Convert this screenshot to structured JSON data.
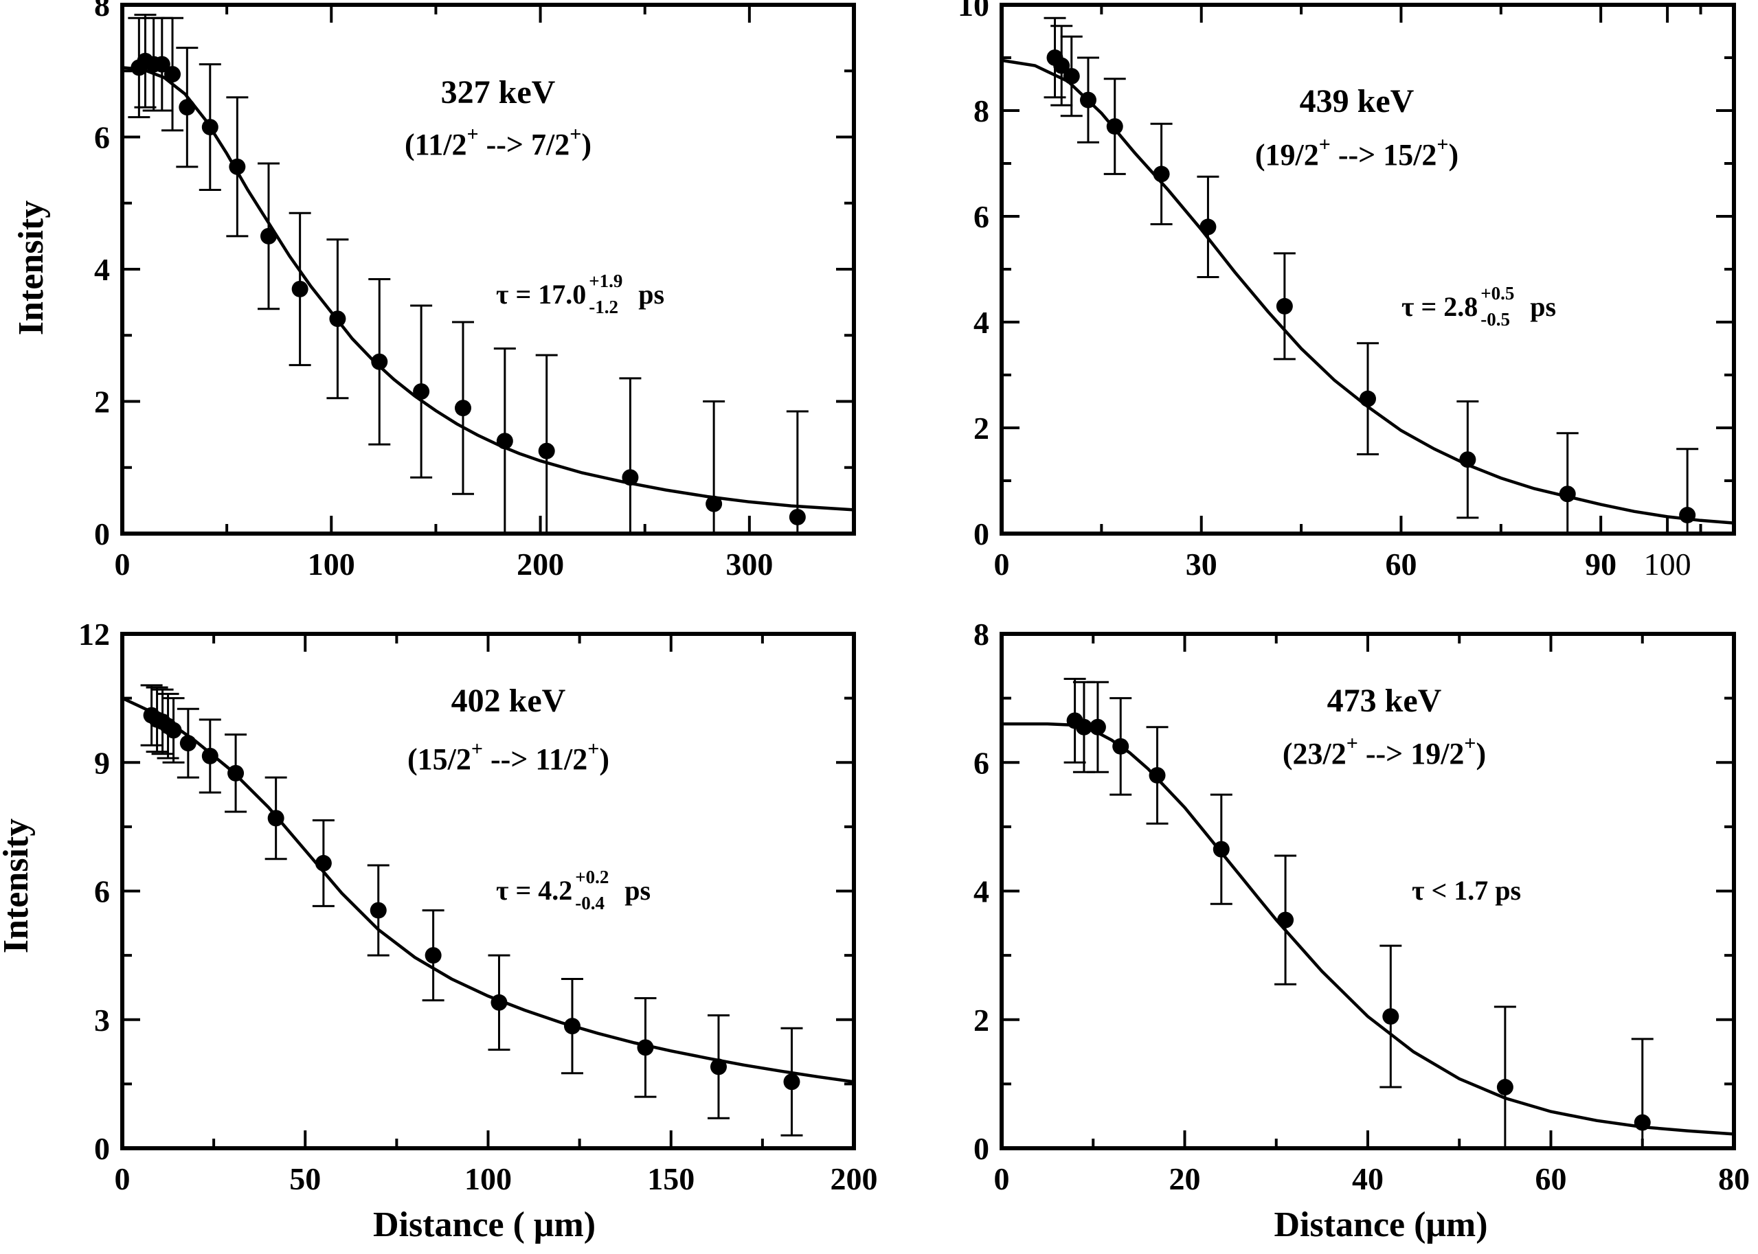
{
  "chart_data": [
    {
      "type": "scatter",
      "xlabel": "",
      "ylabel": "Intensity",
      "xlim": [
        0,
        350
      ],
      "ylim": [
        0,
        8
      ],
      "xticks": [
        0,
        100,
        200,
        300
      ],
      "yticks": [
        0,
        2,
        4,
        6,
        8
      ],
      "x_tick_labels": [
        "0",
        "100",
        "200",
        "300"
      ],
      "y_tick_labels": [
        "0",
        "2",
        "4",
        "6",
        "8"
      ],
      "grid": false,
      "legend": "none",
      "title_lines": {
        "energy": "327 keV",
        "trans_open": "(11/2",
        "trans_sup1": "+",
        "trans_mid": " --> 7/2",
        "trans_sup2": "+",
        "trans_close": ")"
      },
      "tau": {
        "prefix": "τ = 17.0",
        "upper": "+1.9",
        "lower": "-1.2",
        "suffix": "ps"
      },
      "points": {
        "x": [
          8,
          11,
          15,
          19,
          24,
          31,
          42,
          55,
          70,
          85,
          103,
          123,
          143,
          163,
          183,
          203,
          243,
          283,
          323
        ],
        "y": [
          7.05,
          7.15,
          7.1,
          7.1,
          6.95,
          6.45,
          6.15,
          5.55,
          4.5,
          3.7,
          3.25,
          2.6,
          2.15,
          1.9,
          1.4,
          1.25,
          0.85,
          0.45,
          0.25
        ],
        "err": [
          0.75,
          0.7,
          0.7,
          0.7,
          0.85,
          0.9,
          0.95,
          1.05,
          1.1,
          1.15,
          1.2,
          1.25,
          1.3,
          1.3,
          1.4,
          1.45,
          1.5,
          1.55,
          1.6
        ]
      },
      "fit": {
        "x": [
          0,
          10,
          20,
          30,
          40,
          50,
          60,
          70,
          80,
          90,
          100,
          110,
          120,
          130,
          140,
          150,
          160,
          170,
          180,
          190,
          200,
          220,
          240,
          260,
          280,
          300,
          320,
          350
        ],
        "y": [
          7.05,
          7.02,
          6.9,
          6.65,
          6.25,
          5.75,
          5.2,
          4.7,
          4.2,
          3.75,
          3.35,
          2.95,
          2.62,
          2.33,
          2.08,
          1.86,
          1.66,
          1.49,
          1.34,
          1.21,
          1.1,
          0.92,
          0.78,
          0.66,
          0.56,
          0.48,
          0.42,
          0.36
        ]
      }
    },
    {
      "type": "scatter",
      "xlabel": "",
      "ylabel": "",
      "xlim": [
        0,
        110
      ],
      "ylim": [
        0,
        10
      ],
      "xticks": [
        0,
        30,
        60,
        90,
        100
      ],
      "yticks": [
        0,
        2,
        4,
        6,
        8,
        10
      ],
      "x_tick_labels": [
        "0",
        "30",
        "60",
        "90",
        "100"
      ],
      "y_tick_labels": [
        "0",
        "2",
        "4",
        "6",
        "8",
        "10"
      ],
      "grid": false,
      "legend": "none",
      "title_lines": {
        "energy": "439 keV",
        "trans_open": "(19/2",
        "trans_sup1": "+",
        "trans_mid": " --> 15/2",
        "trans_sup2": "+",
        "trans_close": ")"
      },
      "tau": {
        "prefix": "τ = 2.8",
        "upper": "+0.5",
        "lower": "-0.5",
        "suffix": "ps"
      },
      "points": {
        "x": [
          8,
          9,
          10.5,
          13,
          17,
          24,
          31,
          42.5,
          55,
          70,
          85,
          103
        ],
        "y": [
          9.0,
          8.85,
          8.65,
          8.2,
          7.7,
          6.8,
          5.8,
          4.3,
          2.55,
          1.4,
          0.75,
          0.35
        ],
        "err": [
          0.75,
          0.75,
          0.75,
          0.8,
          0.9,
          0.95,
          0.95,
          1.0,
          1.05,
          1.1,
          1.15,
          1.25
        ]
      },
      "fit": {
        "x": [
          0,
          5,
          10,
          15,
          20,
          25,
          30,
          35,
          40,
          45,
          50,
          55,
          60,
          65,
          70,
          75,
          80,
          85,
          90,
          95,
          100,
          105,
          110
        ],
        "y": [
          8.95,
          8.85,
          8.55,
          7.95,
          7.2,
          6.5,
          5.75,
          4.95,
          4.2,
          3.5,
          2.9,
          2.4,
          1.95,
          1.6,
          1.3,
          1.05,
          0.85,
          0.7,
          0.55,
          0.42,
          0.32,
          0.25,
          0.2
        ]
      }
    },
    {
      "type": "scatter",
      "xlabel": "Distance ( μm)",
      "ylabel": "Intensity",
      "xlim": [
        0,
        200
      ],
      "ylim": [
        0,
        12
      ],
      "xticks": [
        0,
        50,
        100,
        150,
        200
      ],
      "yticks": [
        0,
        3,
        6,
        9,
        12
      ],
      "x_tick_labels": [
        "0",
        "50",
        "100",
        "150",
        "200"
      ],
      "y_tick_labels": [
        "0",
        "3",
        "6",
        "9",
        "12"
      ],
      "grid": false,
      "legend": "none",
      "title_lines": {
        "energy": "402 keV",
        "trans_open": "(15/2",
        "trans_sup1": "+",
        "trans_mid": " --> 11/2",
        "trans_sup2": "+",
        "trans_close": ")"
      },
      "tau": {
        "prefix": "τ = 4.2",
        "upper": "+0.2",
        "lower": "-0.4",
        "suffix": "ps"
      },
      "points": {
        "x": [
          8,
          9.5,
          11,
          12.5,
          14,
          18,
          24,
          31,
          42,
          55,
          70,
          85,
          103,
          123,
          143,
          163,
          183
        ],
        "y": [
          10.1,
          10.0,
          9.95,
          9.85,
          9.75,
          9.45,
          9.15,
          8.75,
          7.7,
          6.65,
          5.55,
          4.5,
          3.4,
          2.85,
          2.35,
          1.9,
          1.55
        ],
        "err": [
          0.7,
          0.75,
          0.75,
          0.75,
          0.75,
          0.8,
          0.85,
          0.9,
          0.95,
          1.0,
          1.05,
          1.05,
          1.1,
          1.1,
          1.15,
          1.2,
          1.25
        ]
      },
      "fit": {
        "x": [
          0,
          10,
          20,
          30,
          40,
          50,
          60,
          70,
          80,
          90,
          100,
          110,
          120,
          130,
          140,
          150,
          160,
          170,
          180,
          190,
          200
        ],
        "y": [
          10.5,
          10.1,
          9.5,
          8.8,
          7.95,
          6.95,
          5.95,
          5.1,
          4.45,
          3.95,
          3.55,
          3.22,
          2.93,
          2.68,
          2.46,
          2.27,
          2.1,
          1.94,
          1.8,
          1.67,
          1.55
        ]
      }
    },
    {
      "type": "scatter",
      "xlabel": "Distance (μm)",
      "ylabel": "",
      "xlim": [
        0,
        80
      ],
      "ylim": [
        0,
        8
      ],
      "xticks": [
        0,
        20,
        40,
        60,
        80
      ],
      "yticks": [
        0,
        2,
        4,
        6,
        8
      ],
      "x_tick_labels": [
        "0",
        "20",
        "40",
        "60",
        "80"
      ],
      "y_tick_labels": [
        "0",
        "2",
        "4",
        "6",
        "8"
      ],
      "grid": false,
      "legend": "none",
      "title_lines": {
        "energy": "473 keV",
        "trans_open": "(23/2",
        "trans_sup1": "+",
        "trans_mid": " --> 19/2",
        "trans_sup2": "+",
        "trans_close": ")"
      },
      "tau": {
        "prefix": "τ < 1.7 ps",
        "upper": "",
        "lower": "",
        "suffix": ""
      },
      "points": {
        "x": [
          8,
          9,
          10.5,
          13,
          17,
          24,
          31,
          42.5,
          55,
          70
        ],
        "y": [
          6.65,
          6.55,
          6.55,
          6.25,
          5.8,
          4.65,
          3.55,
          2.05,
          0.95,
          0.4
        ],
        "err": [
          0.65,
          0.7,
          0.7,
          0.75,
          0.75,
          0.85,
          1.0,
          1.1,
          1.25,
          1.3
        ]
      },
      "fit": {
        "x": [
          0,
          5,
          8,
          10,
          12,
          14,
          16,
          18,
          20,
          22,
          24,
          26,
          28,
          30,
          35,
          40,
          45,
          50,
          55,
          60,
          65,
          70,
          75,
          80
        ],
        "y": [
          6.6,
          6.6,
          6.58,
          6.5,
          6.35,
          6.15,
          5.9,
          5.6,
          5.3,
          4.95,
          4.6,
          4.25,
          3.9,
          3.55,
          2.75,
          2.05,
          1.5,
          1.08,
          0.78,
          0.57,
          0.43,
          0.33,
          0.27,
          0.22
        ]
      }
    }
  ]
}
